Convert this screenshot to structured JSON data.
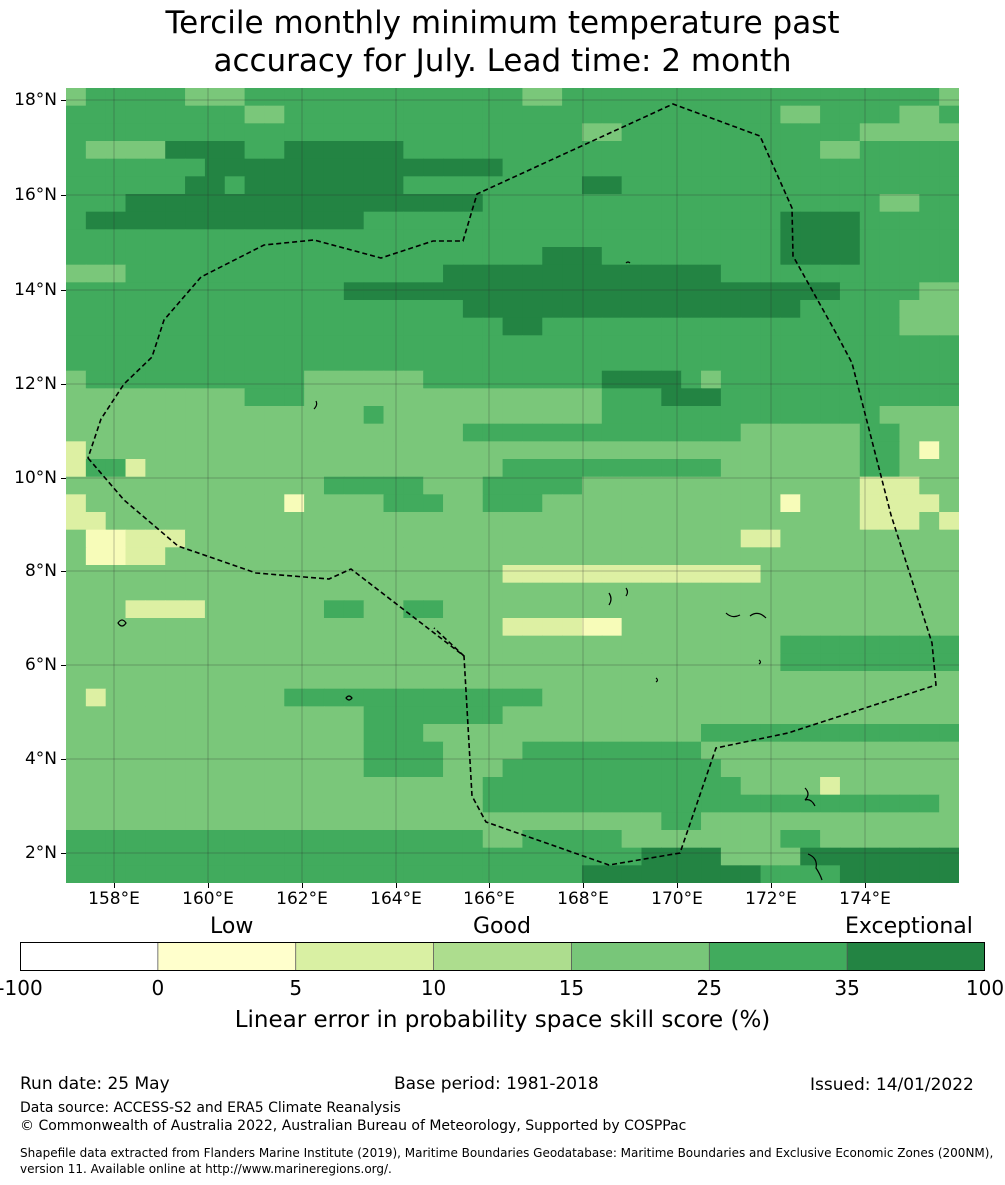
{
  "title": {
    "line1": "Tercile monthly minimum temperature past",
    "line2": "accuracy for July. Lead time: 2 month"
  },
  "map": {
    "lat_labels": [
      "18°N",
      "16°N",
      "14°N",
      "12°N",
      "10°N",
      "8°N",
      "6°N",
      "4°N",
      "2°N"
    ],
    "lon_labels": [
      "158°E",
      "160°E",
      "162°E",
      "164°E",
      "166°E",
      "168°E",
      "170°E",
      "172°E",
      "174°E"
    ],
    "grid_rows": [
      "BCCCCCBBBCCCCCCCCCCCCCCBBCCCCCCCCCCCCCCCCCCCB",
      "CCCCCCCCCBBCCCCCCCCCCCCCCCCCCCCCCCCCBBCCCCBBC",
      "CCCCCCCCCCCCCCCCCCCCCCCCCCBBCCCCCCCCCCCCBBBBB",
      "CBBBBDDDDCCDDDDDDCCCCCCCCCCCCCCCCCCCCCBBCCCCC",
      "CCCCCCCDDDDDDDDDDDDDDDCCCCCCCCCCCCCCCCCCCCCCC",
      "CCCCCCDDCDDDDDDDDCCCCCCCCCDDCCCCCCCCCCCCCCCCC",
      "CCCDDDDDDDDDDDDDDDDDDCCCCCCCCCCCCCCCCCCCCBBCC",
      "CDDDDDDDDDDDDDDCCCCCCCCCCCCCCCCCCCCCDDDDCCCCC",
      "CCCCCCCCCCCCCCCCCCCCCCCCCCCCCCCCCCCCDDDDCCCCC",
      "CCCCCCCCCCCCCCCCCCCCCCCCDDDCCCCCCCCCDDDDCCCCC",
      "BBBCCCCCCCCCCCCCCCCDDDDDDDDDDDDDDCCCCCCCCCCCC",
      "CCCCCCCCCCCCCCDDDDDDDDDDDDDDDDDDDDDDDDDCCCCBB",
      "CCCCCCCCCCCCCCCCCCCCDDDDDDDDDDDDDDDDDCCCCCBBB",
      "CCCCCCCCCCCCCCCCCCCCCCDDCCCCCCCCCCCCCCCCCCBBB",
      "CCCCCCCCCCCCCCCCCCCCCCCCCCCCCCCCCCCCCCCCCCCCC",
      "CCCCCCCCCCCCCCCCCCCCCCCCCCCCCCCCCCCCCCCCCCCCC",
      "BCCCCCCCCCCCBBBBBBCCCCCCCCCDDDDCBCCCCCCCCCCCC",
      "BBBBBBBBBCCCBBBBBBBBBBBBBBBCCCDDDCCCCCCCCCCCC",
      "BBBBBBBBBBBBBBBCBBBBBBBBBBBCCCCCCCCCCCCCCBBBB",
      "BBBBBBBBBBBBBBBBBBBBCCCCCCCCCCCCCCBBBBBBCCBBB",
      "ABBBBBBBBBBBBBBBBBBBBBBBBBBBBBBBBBBBBBBBCCBHB",
      "ACCABBBBBBBBBBBBBBBBBBCCCCCCCCCCCBBBBBBBCCBBB",
      "BBBBBBBBBBBBBCCCCCBBBCCCCCBBBBBBBBBBBBBBAAABB",
      "ABBBBBBBBBBHBBBBCCCBBCCCBBBBBBBBBBBBHBBBAAAAB",
      "AABBBBBBBBBBBBBBBBBBBBBBBBBBBBBBBBBBBBBBAAABA",
      "BHHAAABBBBBBBBBBBBBBBBBBBBBBBBBBBBAABBBBBBBBB",
      "BHHAABBBBBBBBBBBBBBBBBBBBBBBBBBBBBBBBBBBBBBBB",
      "BBBBBBBBBBBBBBBBBBBBBBAAAAAAAAAAAAABBBBBBBBBB",
      "BBBBBBBBBBBBBBBBBBBBBBBBBBBBBBBBBBBBBBBBBBBBB",
      "BBBAAAABBBBBBCCBBCCBBBBBBBBBBBBBBBBBBBBBBBBBB",
      "BBBBBBBBBBBBBBBBBBBBBBAAAAHHBBBBBBBBBBBBBBBBB",
      "BBBBBBBBBBBBBBBBBBBBBBBBBBBBBBBBBBBBCCCCCCCCC",
      "BBBBBBBBBBBBBBBBBBBBBBBBBBBBBBBBBBBBCCCCCCCCC",
      "BBBBBBBBBBBBBBBBBBBBBBBBBBBBBBBBBBBBBBBBBBBBB",
      "BABBBBBBBBBCCCCCCCCCCCCCBBBBBBBBBBBBBBBBBBBBB",
      "BBBBBBBBBBBBBBBCCCCCCCBBBBBBBBBBBBBBBBBBBBBBB",
      "BBBBBBBBBBBBBBBCCCBBBBBBBBBBBBBBCCCCCCCCCCCCC",
      "BBBBBBBBBBBBBBBCCCCBBBBCCCCCCCCCBBBBBBBBBBBBB",
      "BBBBBBBBBBBBBBBCCCCBBBCCCCCCCCCCCBBBBBBBBBBBB",
      "BBBBBBBBBBBBBBBBBBBBBCCCCCCCCCCCCCBBBBABBBBBB",
      "BBBBBBBBBBBBBBBBBBBBBCCCCCCCCCCCCCCCCCCCCCCCB",
      "BBBBBBBBBBBBBBBBBBBBBBBBBBBBBBCCBBBBBBBBBBBBB",
      "CCCCCCCCCCCCCCCCCCCCCBBCCCCCBBBBBBBBCCBBBBBBB",
      "CCCCCCCCCCCCCCCCCCCCCCCCCCCCCDDDDBBBBDDDDDDDD",
      "CCCCCCCCCCCCCCCCCCCCCCCCCCDDDDDDDDDCCCCDDDDDD"
    ],
    "grid_rows_note": "",
    "colors": {
      "A": "#ddf0a3",
      "B": "#7ac77a",
      "C": "#41ab5d",
      "D": "#238443",
      "H": "#f7fcb9",
      "line": "#000000",
      "grid": "#2c2c2c"
    }
  },
  "colorbar": {
    "category_labels": [
      "Low",
      "Good",
      "Exceptional"
    ],
    "tick_labels": [
      "-100",
      "0",
      "5",
      "10",
      "15",
      "25",
      "35",
      "100"
    ],
    "colors": [
      "#ffffff",
      "#ffffcc",
      "#d9f0a3",
      "#addd8e",
      "#78c679",
      "#41ab5d",
      "#238443"
    ],
    "title": "Linear error in probability space skill score (%)"
  },
  "footer": {
    "run_date": "Run date: 25 May",
    "base_period": "Base period: 1981-2018",
    "issued": "Issued: 14/01/2022",
    "data_source": "Data source: ACCESS-S2 and ERA5 Climate Reanalysis",
    "copyright": "© Commonwealth of Australia 2022, Australian Bureau of Meteorology, Supported by COSPPac",
    "shapefile_line1": "Shapefile data extracted from Flanders Marine Institute (2019), Maritime Boundaries Geodatabase: Maritime Boundaries and Exclusive Economic Zones (200NM),",
    "shapefile_line2": "version 11. Available online at http://www.marineregions.org/."
  }
}
